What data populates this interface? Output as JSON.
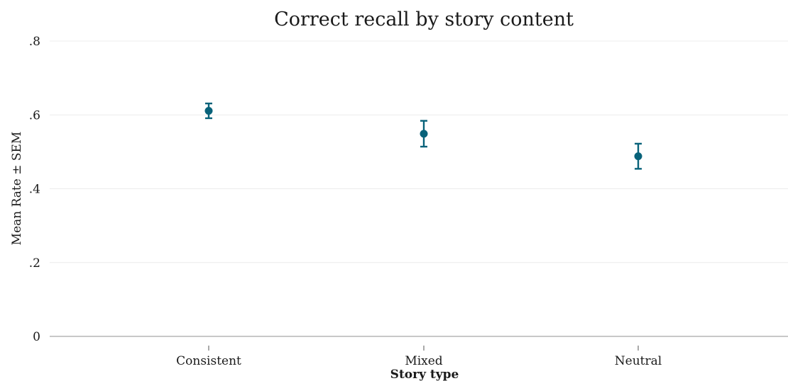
{
  "chart_data": {
    "type": "scatter",
    "title": "Correct recall by story content",
    "xlabel": "Story type",
    "ylabel": "Mean Rate  ± SEM",
    "categories": [
      "Consistent",
      "Mixed",
      "Neutral"
    ],
    "series": [
      {
        "values": [
          0.611,
          0.549,
          0.488
        ],
        "error_low": [
          0.591,
          0.514,
          0.454
        ],
        "error_high": [
          0.631,
          0.584,
          0.522
        ]
      }
    ],
    "ylim": [
      0,
      0.8
    ],
    "yticks": [
      0,
      0.2,
      0.4,
      0.6,
      0.8
    ],
    "ytick_labels": [
      "0",
      ".2",
      ".4",
      ".6",
      ".8"
    ],
    "grid": true,
    "colors": {
      "marker": "#08627a",
      "text": "#1a1a1a"
    }
  }
}
